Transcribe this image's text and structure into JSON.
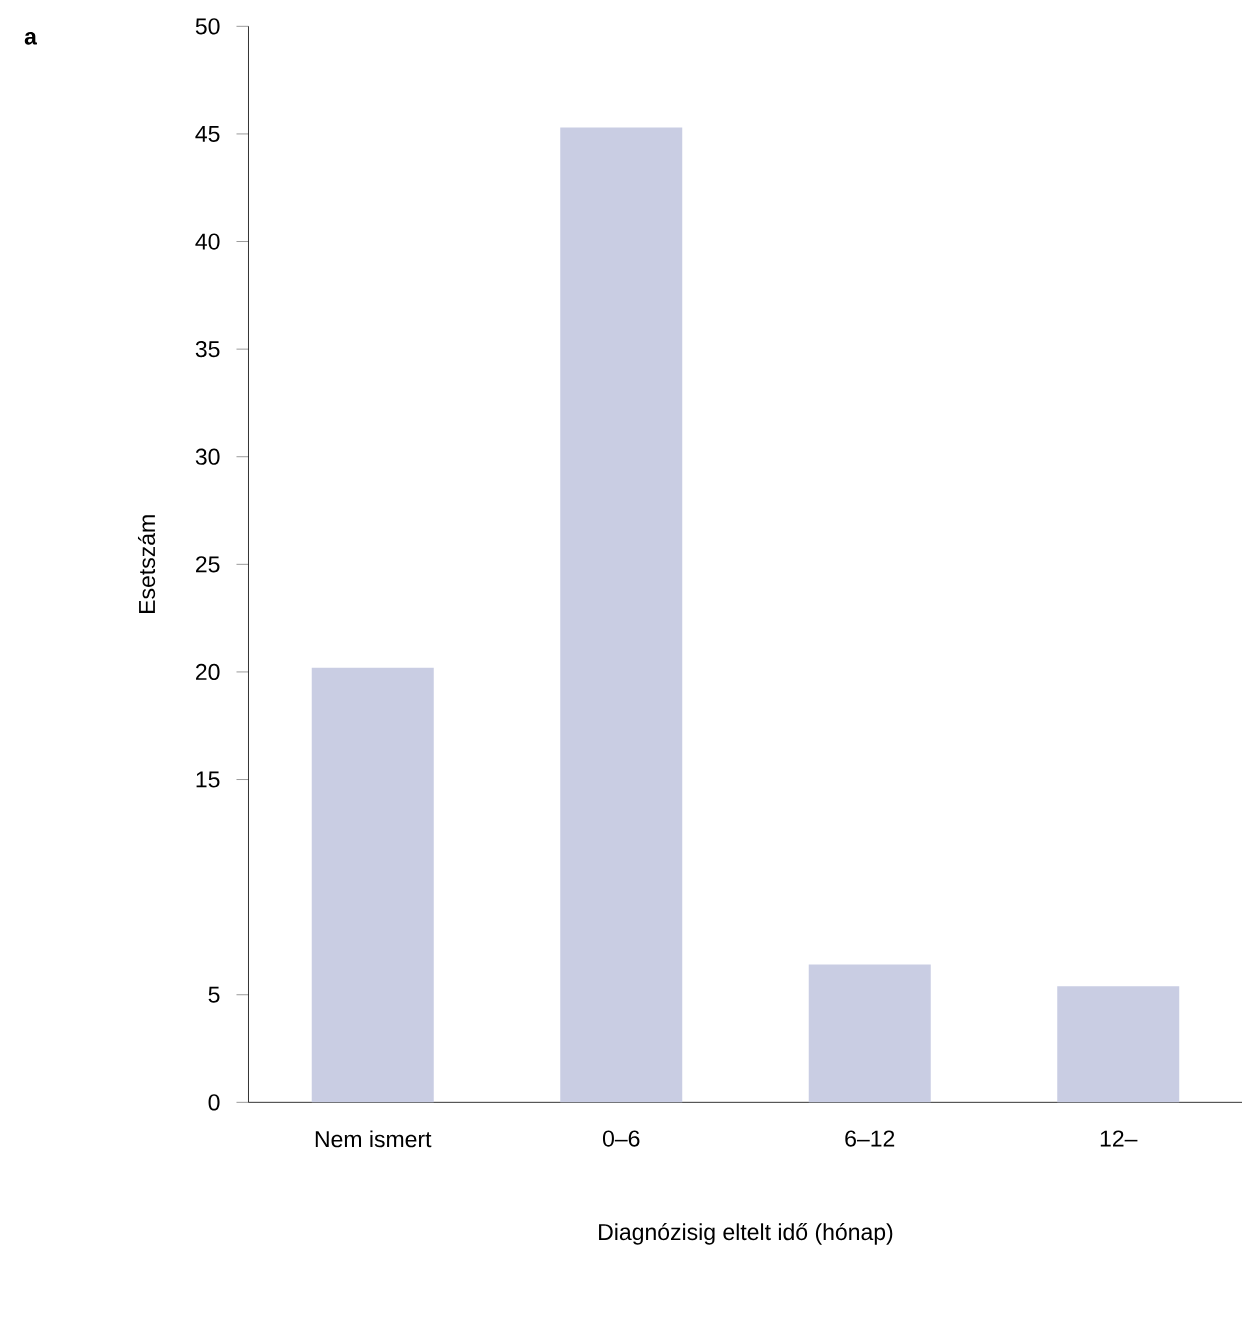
{
  "chart_data": {
    "type": "bar",
    "xlabel": "Diagnózisig eltelt idő (hónap)",
    "ylabel": "Esetszám",
    "annotations": [
      "a"
    ],
    "categories": [
      "Nem ismert",
      "0–6",
      "6–12",
      "12–"
    ],
    "values": [
      20.2,
      45.3,
      6.4,
      5.4
    ],
    "color": "#c9cde3",
    "ylim": [
      0,
      50
    ],
    "yticks": [
      0,
      5,
      15,
      20,
      25,
      30,
      35,
      40,
      45,
      50
    ]
  }
}
